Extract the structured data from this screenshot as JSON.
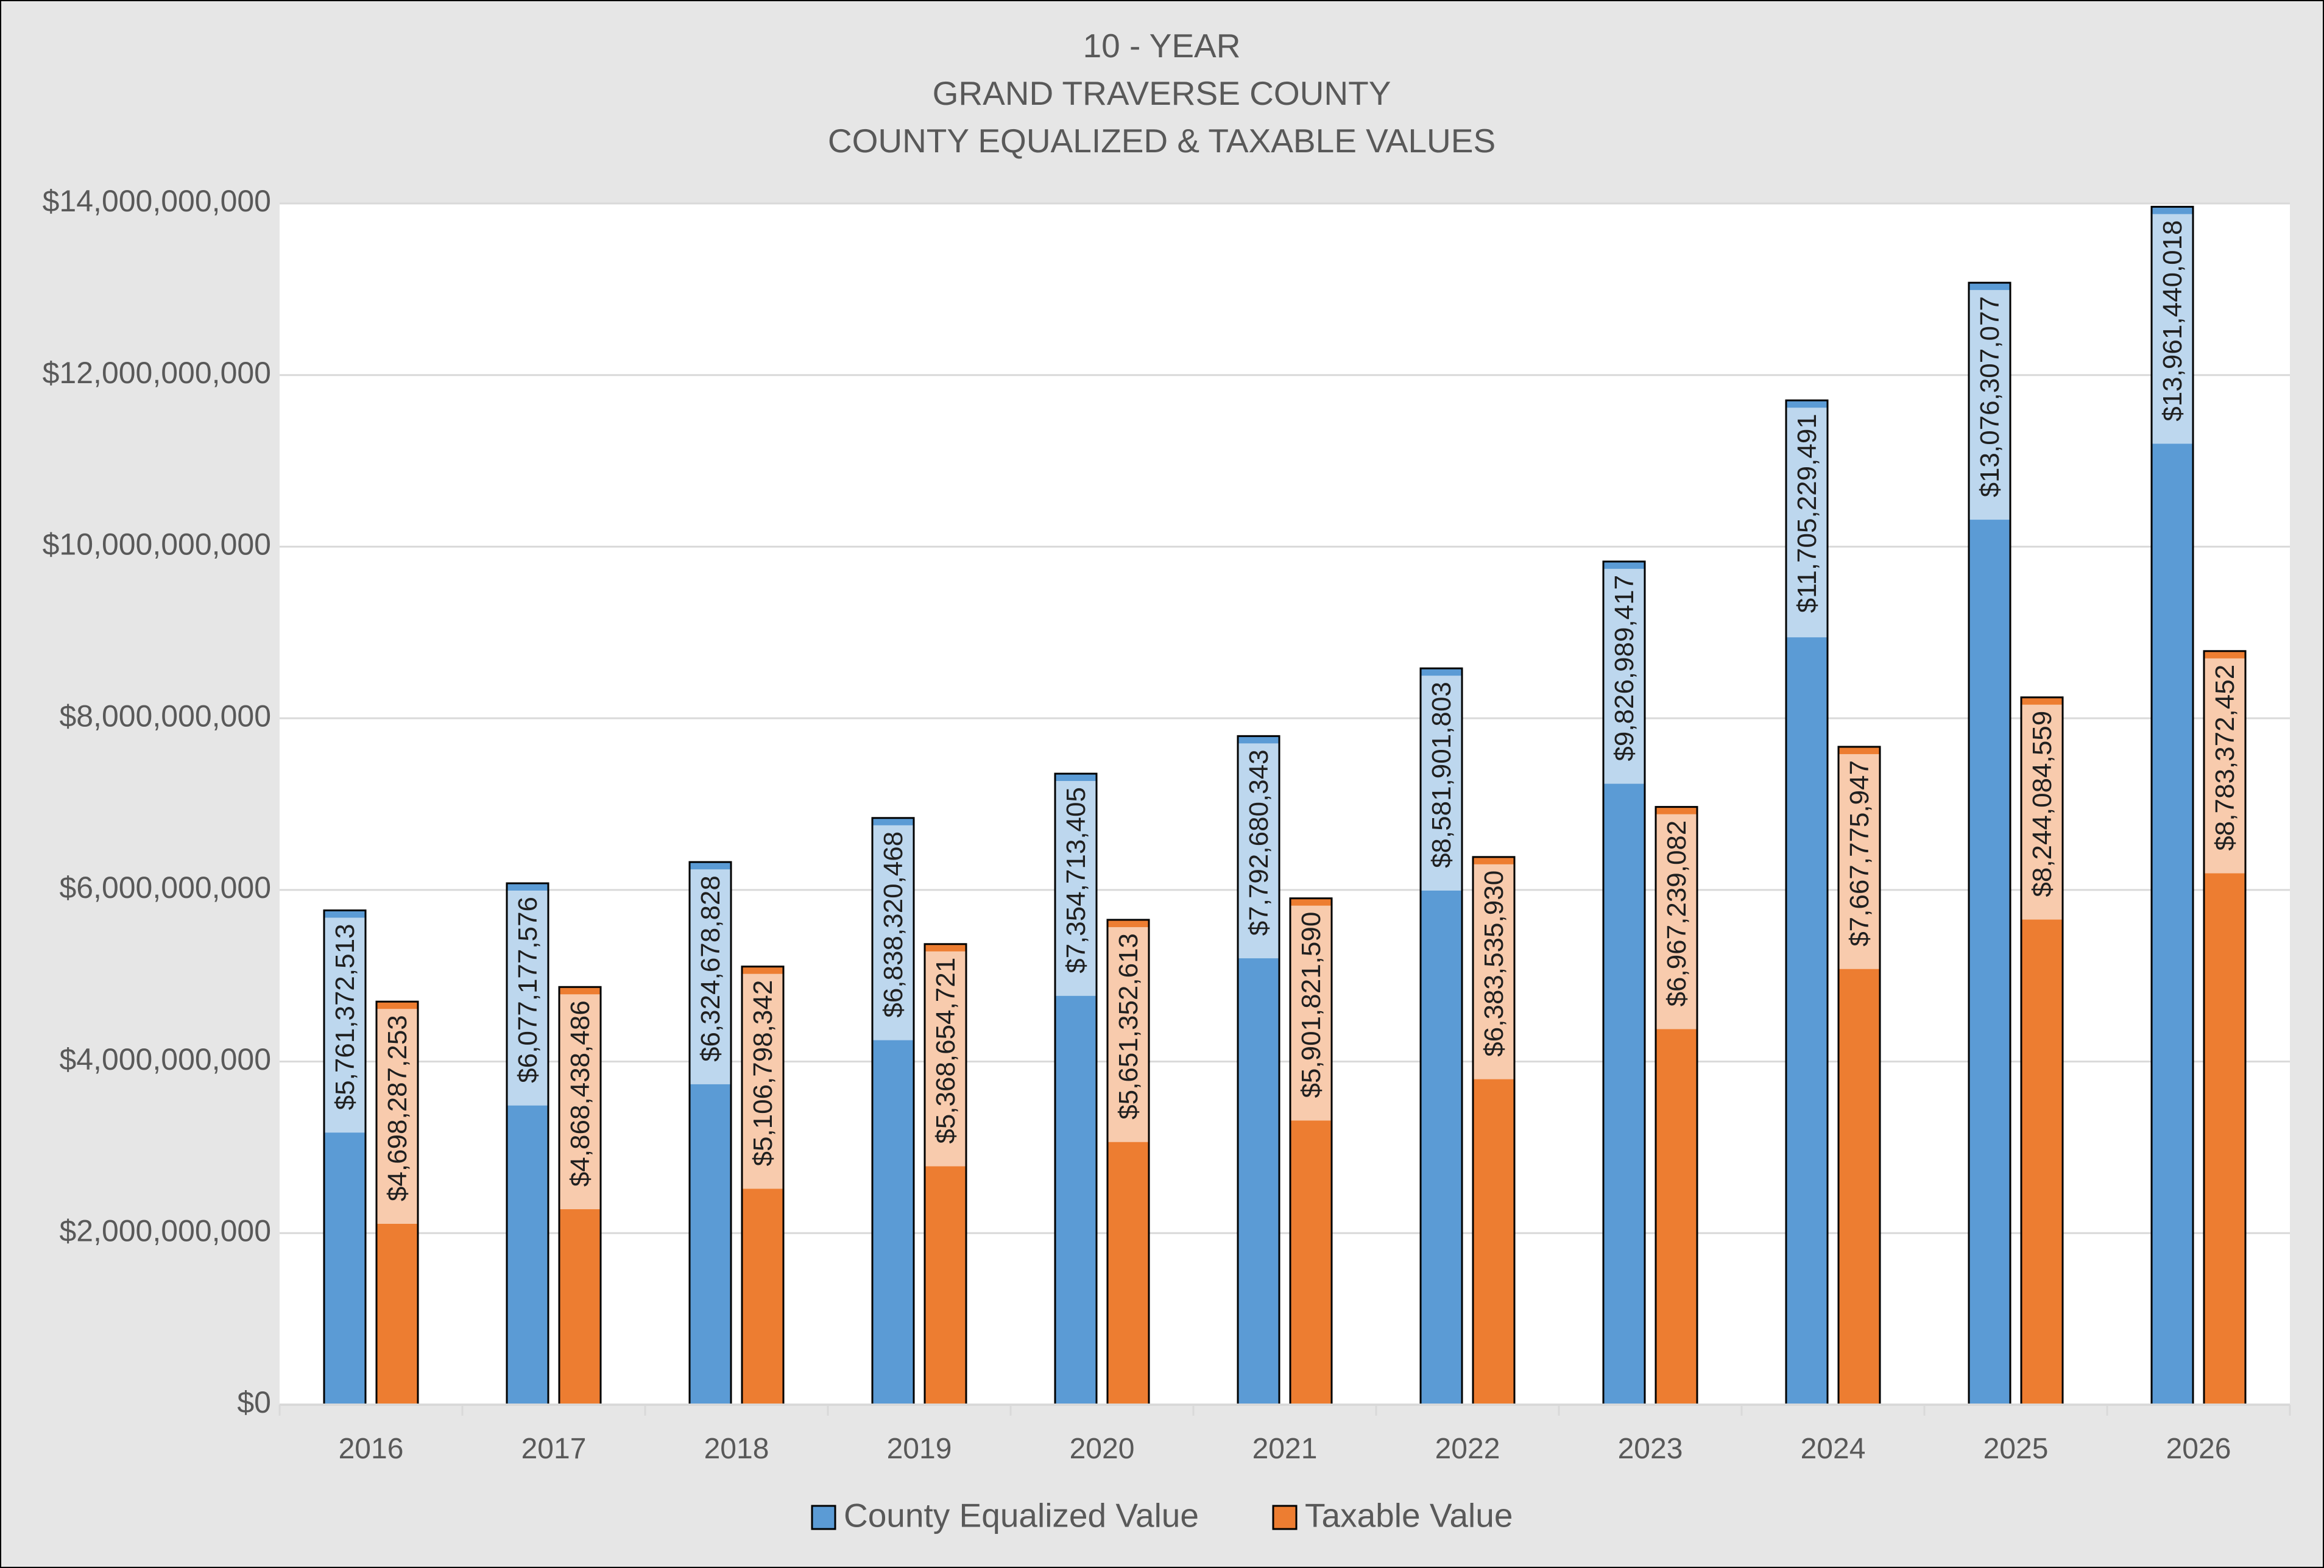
{
  "chart_data": {
    "type": "bar",
    "title": [
      "10 - YEAR",
      "GRAND TRAVERSE COUNTY",
      "COUNTY EQUALIZED & TAXABLE VALUES"
    ],
    "categories": [
      "2016",
      "2017",
      "2018",
      "2019",
      "2020",
      "2021",
      "2022",
      "2023",
      "2024",
      "2025",
      "2026"
    ],
    "series": [
      {
        "name": "County Equalized Value",
        "color": "#5b9bd5",
        "values": [
          5761372513,
          6077177576,
          6324678828,
          6838320468,
          7354713405,
          7792680343,
          8581901803,
          9826989417,
          11705229491,
          13076307077,
          13961440018
        ],
        "labels": [
          "$5,761,372,513",
          "$6,077,177,576",
          "$6,324,678,828",
          "$6,838,320,468",
          "$7,354,713,405",
          "$7,792,680,343",
          "$8,581,901,803",
          "$9,826,989,417",
          "$11,705,229,491",
          "$13,076,307,077",
          "$13,961,440,018"
        ]
      },
      {
        "name": "Taxable Value",
        "color": "#ed7d31",
        "values": [
          4698287253,
          4868438486,
          5106798342,
          5368654721,
          5651352613,
          5901821590,
          6383535930,
          6967239082,
          7667775947,
          8244084559,
          8783372452
        ],
        "labels": [
          "$4,698,287,253",
          "$4,868,438,486",
          "$5,106,798,342",
          "$5,368,654,721",
          "$5,651,352,613",
          "$5,901,821,590",
          "$6,383,535,930",
          "$6,967,239,082",
          "$7,667,775,947",
          "$8,244,084,559",
          "$8,783,372,452"
        ]
      }
    ],
    "ylim": [
      0,
      14000000000
    ],
    "yticks": [
      0,
      2000000000,
      4000000000,
      6000000000,
      8000000000,
      10000000000,
      12000000000,
      14000000000
    ],
    "ytick_labels": [
      "$0",
      "$2,000,000,000",
      "$4,000,000,000",
      "$6,000,000,000",
      "$8,000,000,000",
      "$10,000,000,000",
      "$12,000,000,000",
      "$14,000,000,000"
    ],
    "grid": true,
    "legend": "bottom",
    "xlabel": "",
    "ylabel": ""
  }
}
